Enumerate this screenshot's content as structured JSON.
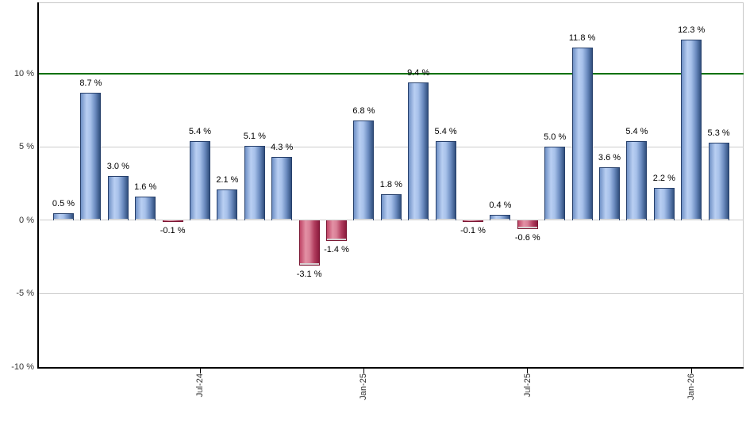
{
  "chart_data": {
    "type": "bar",
    "title": "",
    "xlabel": "",
    "ylabel": "",
    "values": [
      0.5,
      8.7,
      3.0,
      1.6,
      -0.1,
      5.4,
      2.1,
      5.1,
      4.3,
      -3.1,
      -1.4,
      6.8,
      1.8,
      9.4,
      5.4,
      -0.1,
      0.4,
      -0.6,
      5.0,
      11.8,
      3.6,
      5.4,
      2.2,
      12.3,
      5.3
    ],
    "bar_labels": [
      "0.5 %",
      "8.7 %",
      "3.0 %",
      "1.6 %",
      "-0.1 %",
      "5.4 %",
      "2.1 %",
      "5.1 %",
      "4.3 %",
      "-3.1 %",
      "-1.4 %",
      "6.8 %",
      "1.8 %",
      "9.4 %",
      "5.4 %",
      "-0.1 %",
      "0.4 %",
      "-0.6 %",
      "5.0 %",
      "11.8 %",
      "3.6 %",
      "5.4 %",
      "2.2 %",
      "12.3 %",
      "5.3 %"
    ],
    "x_ticks": [
      {
        "bar_index": 5,
        "label": "Jul-24"
      },
      {
        "bar_index": 11,
        "label": "Jan-25"
      },
      {
        "bar_index": 17,
        "label": "Jul-25"
      },
      {
        "bar_index": 23,
        "label": "Jan-26"
      }
    ],
    "y_ticks": [
      {
        "value": 10,
        "label": "10 %"
      },
      {
        "value": 5,
        "label": "5 %"
      },
      {
        "value": 0,
        "label": "0 %"
      },
      {
        "value": -5,
        "label": "-5 %"
      },
      {
        "value": -10,
        "label": "-10 %"
      }
    ],
    "gridline_values": [
      5,
      0,
      -5
    ],
    "ylim": [
      -10,
      14.8
    ],
    "grid": true,
    "legend": "none",
    "reference_line": {
      "value": 10,
      "color": "#007000"
    },
    "colors": {
      "positive_bar_main": "#7091c6",
      "positive_bar_light": "#b9cff2",
      "positive_bar_dark": "#31507f",
      "negative_bar_main": "#bf4566",
      "negative_bar_light": "#e391a5",
      "negative_bar_dark": "#8c1c3e",
      "gridline": "#cccccc",
      "axis": "#000000",
      "plot_border": "#c6c6c6",
      "label_text": "#000000"
    }
  }
}
